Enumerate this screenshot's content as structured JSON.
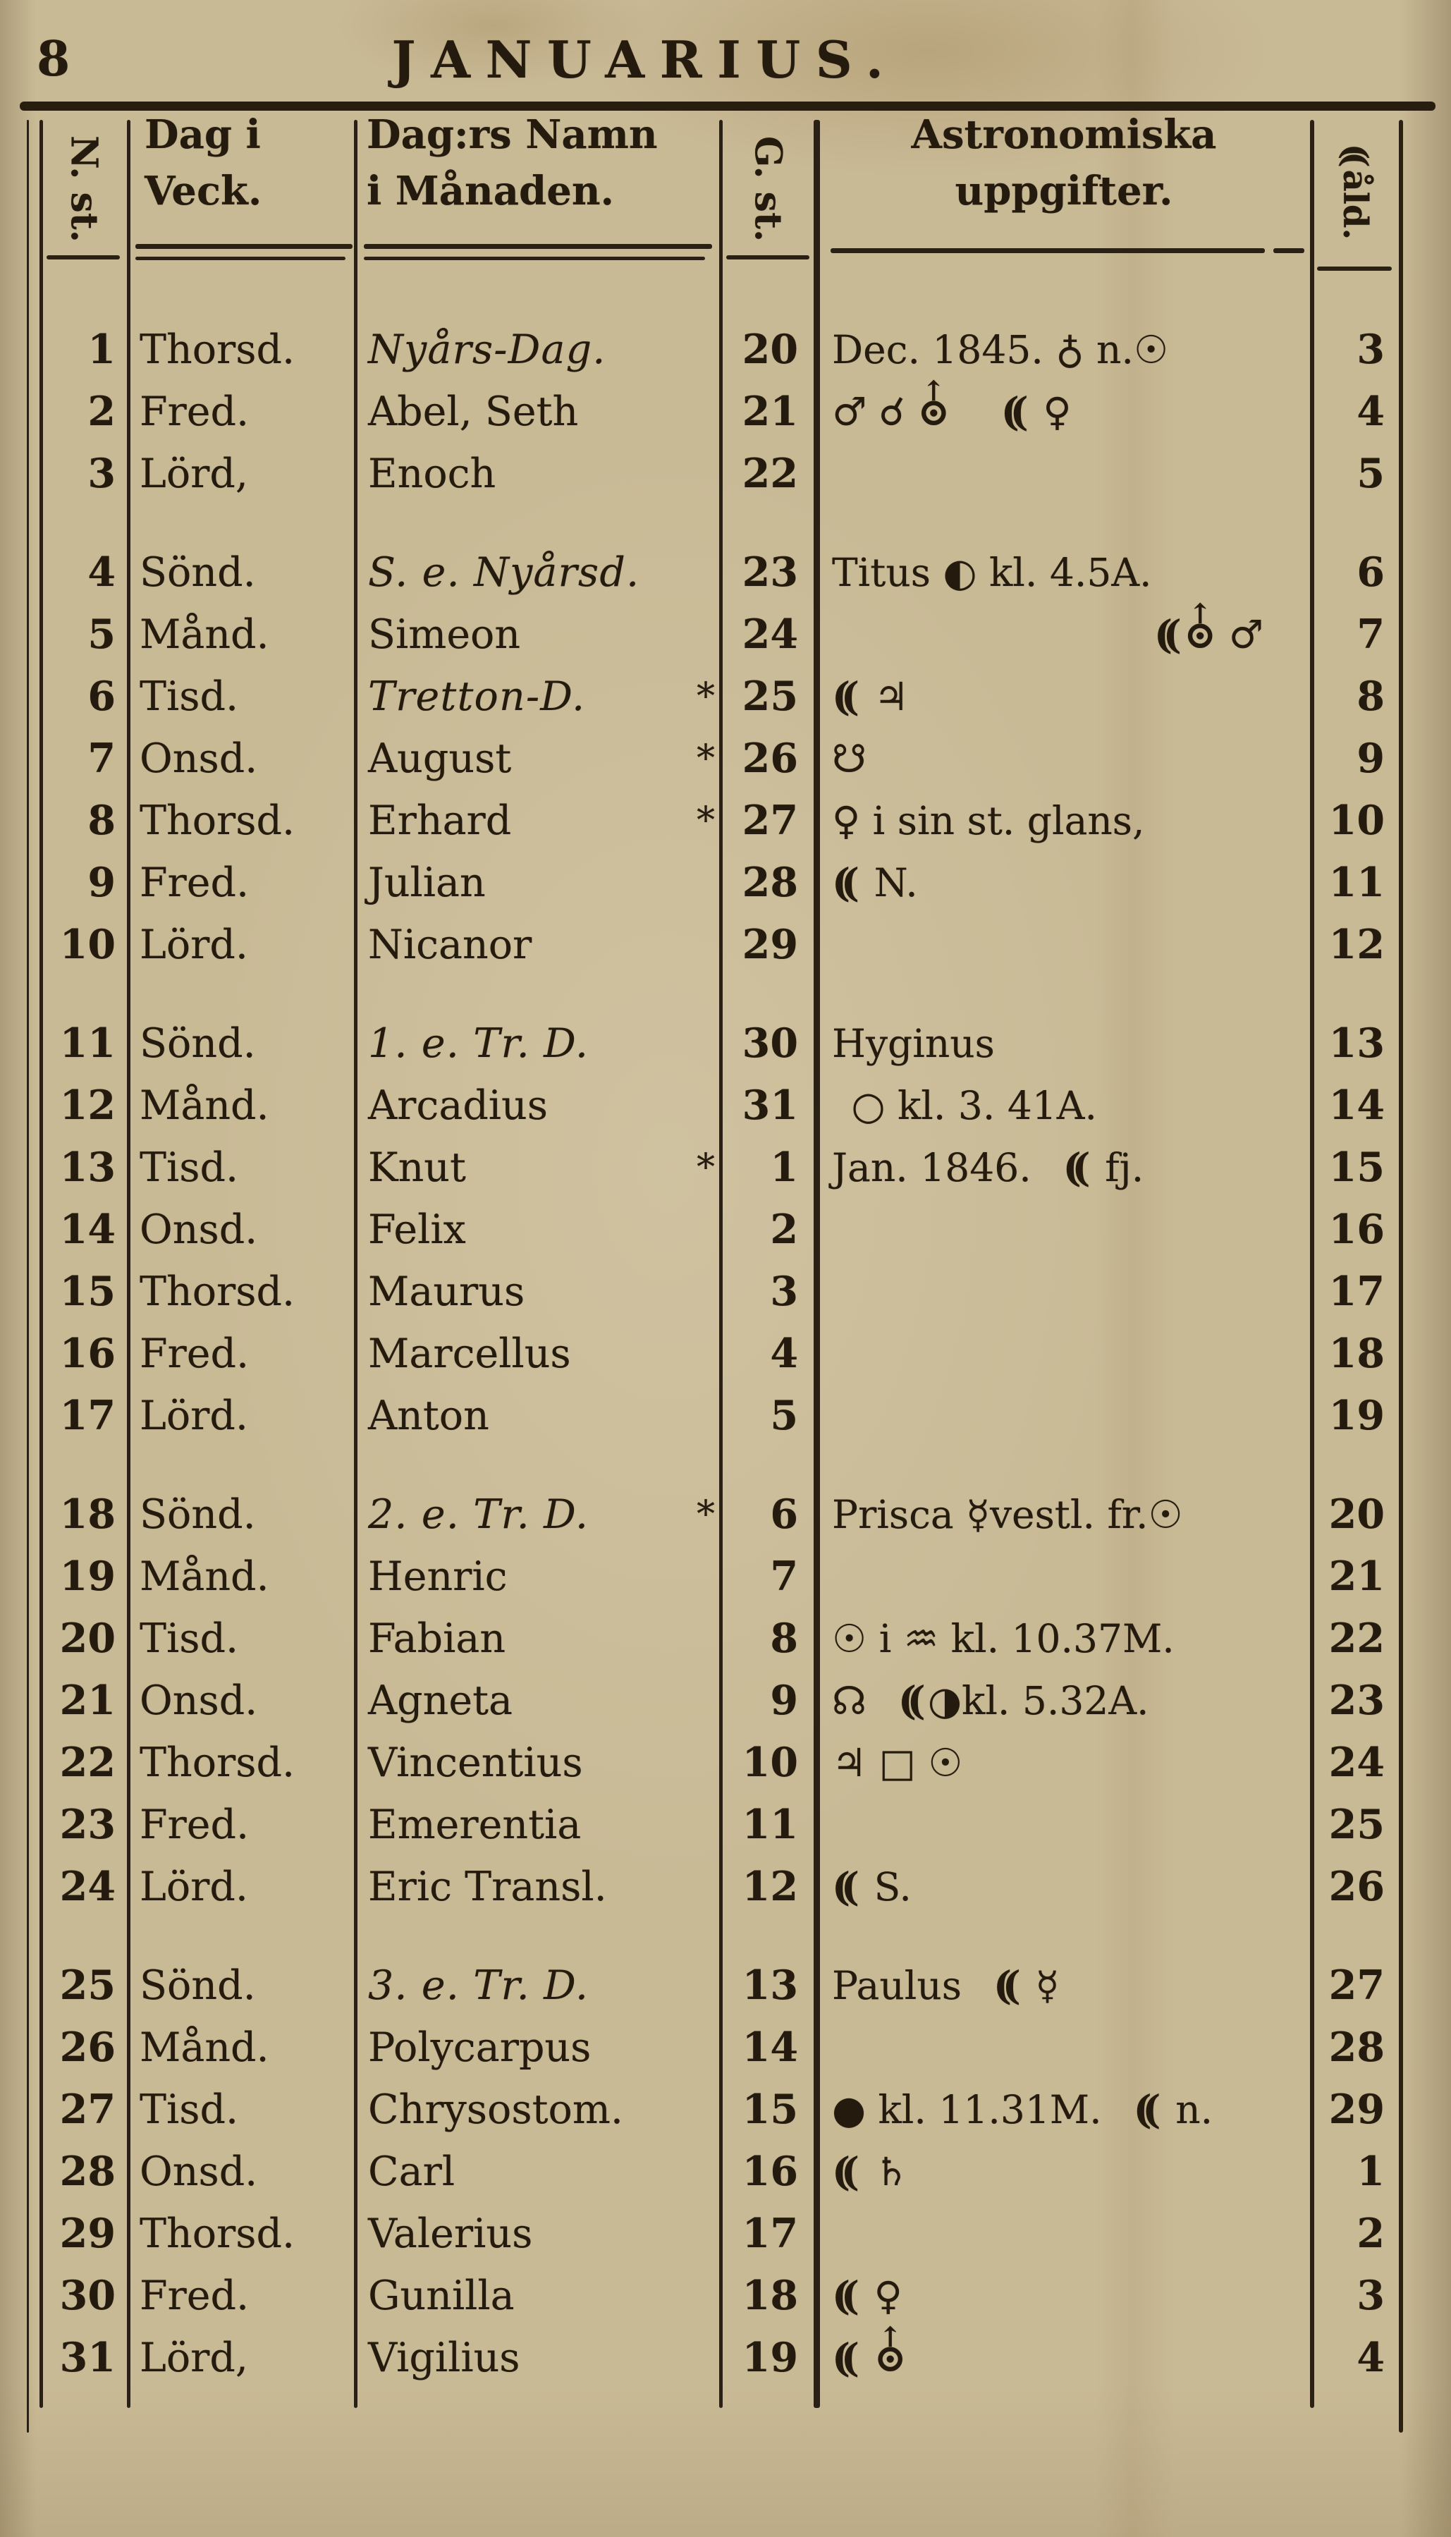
{
  "page": {
    "number": "8",
    "title": "JANUARIUS."
  },
  "table": {
    "columns": {
      "new_style": "N. st.",
      "weekday_line1": "Dag i",
      "weekday_line2": "Veck.",
      "name_line1": "Dag:rs Namn",
      "name_line2": "i Månaden.",
      "old_style": "G. st.",
      "astro_line1": "Astronomiska",
      "astro_line2": "uppgifter.",
      "moon_age": "☽åld."
    },
    "symbols": {
      "moon_glyph": "((",
      "uranus_arrow": "↑",
      "uranus_disc": "⊙"
    },
    "rows": [
      {
        "nst": "1",
        "veck": "Thorsd.",
        "namn": "Nyårs-Dag.",
        "feast": true,
        "gst": "20",
        "astro": "Dec. 1845. ♁ n.☉",
        "age": "3"
      },
      {
        "nst": "2",
        "veck": "Fred.",
        "namn": "Abel, Seth",
        "gst": "21",
        "astro": "♂ ☌ ⛢  ☽ ♀",
        "age": "4"
      },
      {
        "nst": "3",
        "veck": "Lörd,",
        "namn": "Enoch",
        "gst": "22",
        "astro": "",
        "age": "5"
      },
      {
        "nst": "4",
        "veck": "Sönd.",
        "namn": "S. e. Nyårsd.",
        "feast": true,
        "week_start": true,
        "gst": "23",
        "astro": "Titus ◐ kl. 4.5A.",
        "age": "6"
      },
      {
        "nst": "5",
        "veck": "Månd.",
        "namn": "Simeon",
        "gst": "24",
        "astro": "☽⛢ ♂",
        "astro_align": "right",
        "age": "7"
      },
      {
        "nst": "6",
        "veck": "Tisd.",
        "namn": "Tretton-D.",
        "feast": true,
        "star": true,
        "gst": "25",
        "astro": "☽ ♃",
        "age": "8"
      },
      {
        "nst": "7",
        "veck": "Onsd.",
        "namn": "August",
        "star": true,
        "gst": "26",
        "astro": "☋",
        "age": "9"
      },
      {
        "nst": "8",
        "veck": "Thorsd.",
        "namn": "Erhard",
        "star": true,
        "gst": "27",
        "astro": "♀ i sin st. glans,",
        "age": "10"
      },
      {
        "nst": "9",
        "veck": "Fred.",
        "namn": "Julian",
        "gst": "28",
        "astro": "☽ N.",
        "age": "11"
      },
      {
        "nst": "10",
        "veck": "Lörd.",
        "namn": "Nicanor",
        "gst": "29",
        "astro": "",
        "age": "12"
      },
      {
        "nst": "11",
        "veck": "Sönd.",
        "namn": "1. e. Tr. D.",
        "feast": true,
        "week_start": true,
        "gst": "30",
        "astro": "Hyginus",
        "age": "13"
      },
      {
        "nst": "12",
        "veck": "Månd.",
        "namn": "Arcadius",
        "gst": "31",
        "astro": " ○ kl. 3. 41A.",
        "age": "14"
      },
      {
        "nst": "13",
        "veck": "Tisd.",
        "namn": "Knut",
        "star": true,
        "gst": "1",
        "astro": "Jan. 1846.  ☽ fj.",
        "age": "15"
      },
      {
        "nst": "14",
        "veck": "Onsd.",
        "namn": "Felix",
        "gst": "2",
        "astro": "",
        "age": "16"
      },
      {
        "nst": "15",
        "veck": "Thorsd.",
        "namn": "Maurus",
        "gst": "3",
        "astro": "",
        "age": "17"
      },
      {
        "nst": "16",
        "veck": "Fred.",
        "namn": "Marcellus",
        "gst": "4",
        "astro": "",
        "age": "18"
      },
      {
        "nst": "17",
        "veck": "Lörd.",
        "namn": "Anton",
        "gst": "5",
        "astro": "",
        "age": "19"
      },
      {
        "nst": "18",
        "veck": "Sönd.",
        "namn": "2. e. Tr. D.",
        "feast": true,
        "star": true,
        "week_start": true,
        "gst": "6",
        "astro": "Prisca ☿vestl. fr.☉",
        "age": "20"
      },
      {
        "nst": "19",
        "veck": "Månd.",
        "namn": "Henric",
        "gst": "7",
        "astro": "",
        "age": "21"
      },
      {
        "nst": "20",
        "veck": "Tisd.",
        "namn": "Fabian",
        "gst": "8",
        "astro": "☉ i ♒ kl. 10.37M.",
        "age": "22"
      },
      {
        "nst": "21",
        "veck": "Onsd.",
        "namn": "Agneta",
        "gst": "9",
        "astro": "☊  ☽◑kl. 5.32A.",
        "age": "23"
      },
      {
        "nst": "22",
        "veck": "Thorsd.",
        "namn": "Vincentius",
        "gst": "10",
        "astro": "♃ □ ☉",
        "age": "24"
      },
      {
        "nst": "23",
        "veck": "Fred.",
        "namn": "Emerentia",
        "gst": "11",
        "astro": "",
        "age": "25"
      },
      {
        "nst": "24",
        "veck": "Lörd.",
        "namn": "Eric Transl.",
        "gst": "12",
        "astro": "☽ S.",
        "age": "26"
      },
      {
        "nst": "25",
        "veck": "Sönd.",
        "namn": "3. e. Tr. D.",
        "feast": true,
        "week_start": true,
        "gst": "13",
        "astro": "Paulus  ☽ ☿",
        "age": "27"
      },
      {
        "nst": "26",
        "veck": "Månd.",
        "namn": "Polycarpus",
        "gst": "14",
        "astro": "",
        "age": "28"
      },
      {
        "nst": "27",
        "veck": "Tisd.",
        "namn": "Chrysostom.",
        "gst": "15",
        "astro": "● kl. 11.31M.  ☽ n.",
        "age": "29"
      },
      {
        "nst": "28",
        "veck": "Onsd.",
        "namn": "Carl",
        "gst": "16",
        "astro": "☽ ♄",
        "age": "1"
      },
      {
        "nst": "29",
        "veck": "Thorsd.",
        "namn": "Valerius",
        "gst": "17",
        "astro": "",
        "age": "2"
      },
      {
        "nst": "30",
        "veck": "Fred.",
        "namn": "Gunilla",
        "gst": "18",
        "astro": "☽ ♀",
        "age": "3"
      },
      {
        "nst": "31",
        "veck": "Lörd,",
        "namn": "Vigilius",
        "gst": "19",
        "astro": "☽ ⛢",
        "age": "4"
      }
    ]
  }
}
